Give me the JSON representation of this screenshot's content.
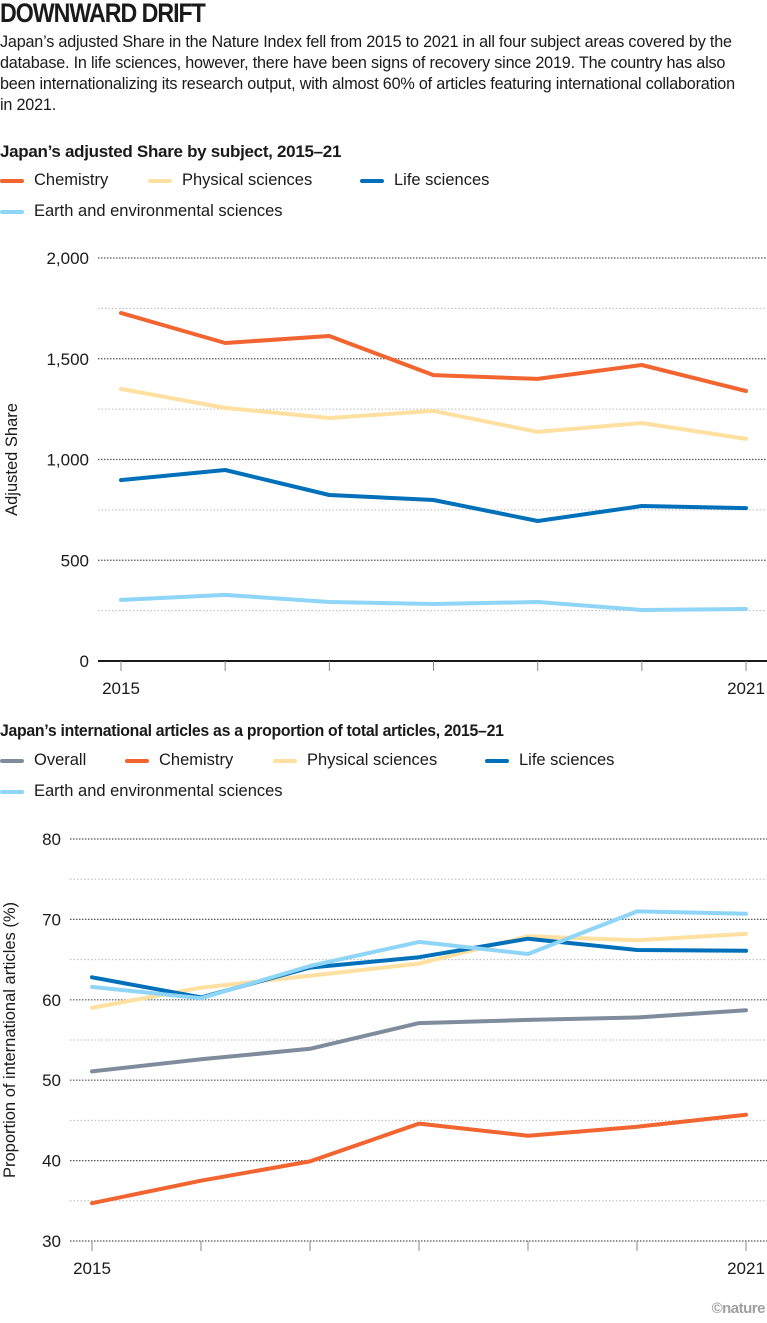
{
  "headline": "DOWNWARD DRIFT",
  "intro": "Japan’s adjusted Share in the Nature Index fell from 2015 to 2021 in all four subject areas covered by the database. In life sciences, however, there have been signs of recovery since 2019. The country has also been internationalizing its research output, with almost 60% of articles featuring international collaboration in 2021.",
  "credit": "©nature",
  "colors": {
    "chemistry": "#F26430",
    "physical": "#FFE0A0",
    "life": "#0070BA",
    "earth": "#8FD5F7",
    "overall": "#7F8C9B"
  },
  "chart_data": [
    {
      "type": "line",
      "title": "Japan’s adjusted Share by subject, 2015–21",
      "xlabel": "",
      "ylabel": "Adjusted Share",
      "x": [
        2015,
        2016,
        2017,
        2018,
        2019,
        2020,
        2021
      ],
      "x_tick_labels": [
        "2015",
        "",
        "",
        "",
        "",
        "",
        "2021"
      ],
      "ylim": [
        0,
        2000
      ],
      "y_ticks": [
        0,
        500,
        1000,
        1500,
        2000
      ],
      "y_tick_labels": [
        "0",
        "500",
        "1,000",
        "1,500",
        "2,000"
      ],
      "minor_gridlines": [
        250,
        750,
        1250,
        1750
      ],
      "grid": true,
      "legend_position": "top-left",
      "series": [
        {
          "name": "Chemistry",
          "color": "#F26430",
          "values": [
            1727,
            1578,
            1613,
            1419,
            1400,
            1469,
            1340
          ]
        },
        {
          "name": "Physical sciences",
          "color": "#FFE0A0",
          "values": [
            1350,
            1256,
            1206,
            1241,
            1137,
            1181,
            1102
          ]
        },
        {
          "name": "Life sciences",
          "color": "#0070BA",
          "values": [
            898,
            948,
            824,
            799,
            695,
            769,
            759
          ]
        },
        {
          "name": "Earth and environmental sciences",
          "color": "#8FD5F7",
          "values": [
            303,
            328,
            293,
            283,
            293,
            253,
            258
          ]
        }
      ]
    },
    {
      "type": "line",
      "title": "Japan’s international articles as a proportion of total articles, 2015–21",
      "xlabel": "",
      "ylabel": "Proportion of international articles (%)",
      "x": [
        2015,
        2016,
        2017,
        2018,
        2019,
        2020,
        2021
      ],
      "x_tick_labels": [
        "2015",
        "",
        "",
        "",
        "",
        "",
        "2021"
      ],
      "ylim": [
        30,
        80
      ],
      "y_ticks": [
        30,
        40,
        50,
        60,
        70,
        80
      ],
      "y_tick_labels": [
        "30",
        "40",
        "50",
        "60",
        "70",
        "80"
      ],
      "minor_gridlines": [
        35,
        45,
        55,
        65,
        75
      ],
      "grid": true,
      "legend_position": "top-left",
      "series": [
        {
          "name": "Overall",
          "color": "#7F8C9B",
          "values": [
            51.1,
            52.6,
            53.9,
            57.1,
            57.5,
            57.8,
            58.7
          ]
        },
        {
          "name": "Chemistry",
          "color": "#F26430",
          "values": [
            34.7,
            37.5,
            39.9,
            44.6,
            43.1,
            44.2,
            45.7
          ]
        },
        {
          "name": "Physical sciences",
          "color": "#FFE0A0",
          "values": [
            59.0,
            61.5,
            63.0,
            64.5,
            67.9,
            67.4,
            68.2
          ]
        },
        {
          "name": "Life sciences",
          "color": "#0070BA",
          "values": [
            62.8,
            60.3,
            64.0,
            65.3,
            67.6,
            66.2,
            66.1
          ]
        },
        {
          "name": "Earth and environmental sciences",
          "color": "#8FD5F7",
          "values": [
            61.6,
            60.2,
            64.2,
            67.2,
            65.7,
            71.0,
            70.7
          ]
        }
      ]
    }
  ]
}
